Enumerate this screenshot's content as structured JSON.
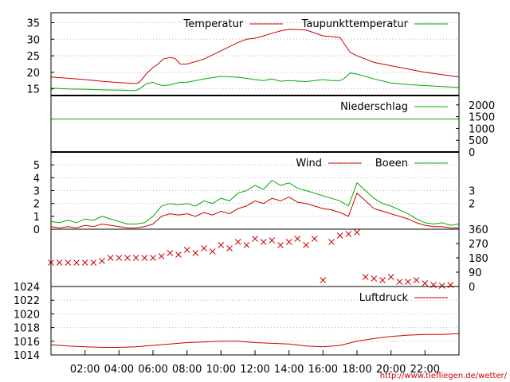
{
  "x_tick_labels": [
    "02:00",
    "04:00",
    "06:00",
    "08:00",
    "10:00",
    "12:00",
    "14:00",
    "16:00",
    "18:00",
    "20:00",
    "22:00"
  ],
  "credit": "http://www.tiefliegen.de/wetter/",
  "colors": {
    "red": "#cc0000",
    "green": "#00aa00",
    "grid": "#b0b0b0",
    "axis": "#000000"
  },
  "chart_data": [
    {
      "type": "line",
      "panel": "temperature",
      "x_unit": "hours",
      "x": [
        0,
        1,
        2,
        3,
        4,
        5,
        5.2,
        5.6,
        6,
        6.3,
        6.6,
        7,
        7.3,
        7.6,
        8,
        9,
        10,
        11,
        11.5,
        12,
        12.5,
        13,
        13.5,
        14,
        15,
        16,
        16.5,
        17,
        17.2,
        17.6,
        18,
        19,
        20,
        21,
        22,
        23,
        24
      ],
      "series": [
        {
          "name": "Temperatur",
          "color": "#cc0000",
          "values": [
            18.6,
            18.2,
            17.8,
            17.3,
            16.9,
            16.6,
            17,
            19.5,
            21.5,
            22.5,
            24,
            24.5,
            24.2,
            22.5,
            22.5,
            24,
            26.5,
            29,
            30,
            30.3,
            31,
            31.8,
            32.5,
            33,
            32.8,
            31,
            30.8,
            30.5,
            29,
            26,
            25,
            23,
            22,
            21,
            20,
            19.3,
            18.6
          ]
        },
        {
          "name": "Taupunkttemperatur",
          "color": "#00aa00",
          "values": [
            15.2,
            15,
            14.9,
            14.7,
            14.6,
            14.5,
            15,
            16.5,
            17,
            16.3,
            16,
            16.2,
            16.6,
            17,
            17,
            18,
            18.8,
            18.5,
            18.2,
            17.8,
            17.5,
            18,
            17.3,
            17.5,
            17.2,
            17.8,
            17.5,
            17.5,
            18,
            19.8,
            19.5,
            18,
            16.8,
            16.3,
            16,
            15.7,
            15.4
          ]
        }
      ],
      "xlabel": "",
      "ylabel": "",
      "xlim": [
        0,
        24
      ],
      "ylim": [
        13,
        38
      ],
      "yticks": [
        15,
        20,
        25,
        30,
        35
      ],
      "grid": true,
      "legend": "top-right"
    },
    {
      "type": "line",
      "panel": "precipitation",
      "x_unit": "hours",
      "x": [
        0,
        24
      ],
      "series": [
        {
          "name": "Niederschlag",
          "color": "#00aa00",
          "values": [
            1400,
            1400
          ]
        }
      ],
      "xlim": [
        0,
        24
      ],
      "ylim": [
        0,
        2400
      ],
      "yticks": [
        0,
        500,
        1000,
        1500,
        2000
      ],
      "y_axis_side": "right",
      "grid": false,
      "legend": "top-right"
    },
    {
      "type": "line",
      "panel": "wind",
      "x_unit": "hours",
      "x": [
        0,
        0.5,
        1,
        1.5,
        2,
        2.5,
        3,
        3.5,
        4,
        4.5,
        5,
        5.5,
        6,
        6.5,
        7,
        7.5,
        8,
        8.5,
        9,
        9.5,
        10,
        10.5,
        11,
        11.5,
        12,
        12.5,
        13,
        13.5,
        14,
        14.5,
        15,
        15.5,
        16,
        16.5,
        17,
        17.5,
        18,
        18.5,
        19,
        19.5,
        20,
        20.5,
        21,
        21.5,
        22,
        22.5,
        23,
        23.5,
        24
      ],
      "series": [
        {
          "name": "Wind",
          "color": "#cc0000",
          "values": [
            0.2,
            0.1,
            0.2,
            0.1,
            0.3,
            0.2,
            0.4,
            0.3,
            0.2,
            0.1,
            0.1,
            0.2,
            0.4,
            1,
            1.2,
            1.1,
            1.2,
            1.0,
            1.3,
            1.1,
            1.4,
            1.2,
            1.6,
            1.8,
            2.2,
            2.0,
            2.4,
            2.2,
            2.5,
            2.1,
            2.0,
            1.8,
            1.6,
            1.5,
            1.3,
            1.0,
            2.8,
            2.2,
            1.6,
            1.4,
            1.2,
            1.0,
            0.8,
            0.5,
            0.3,
            0.2,
            0.2,
            0.1,
            0.1
          ]
        },
        {
          "name": "Boeen",
          "color": "#00aa00",
          "values": [
            0.6,
            0.5,
            0.7,
            0.5,
            0.8,
            0.7,
            1.0,
            0.8,
            0.6,
            0.4,
            0.4,
            0.5,
            1.0,
            1.8,
            2.0,
            1.9,
            2.0,
            1.8,
            2.2,
            2.0,
            2.4,
            2.2,
            2.8,
            3.0,
            3.4,
            3.1,
            3.8,
            3.4,
            3.6,
            3.2,
            3.0,
            2.8,
            2.6,
            2.4,
            2.2,
            1.8,
            3.6,
            3.0,
            2.4,
            2.0,
            1.8,
            1.5,
            1.2,
            0.8,
            0.5,
            0.4,
            0.5,
            0.3,
            0.4
          ]
        }
      ],
      "xlim": [
        0,
        24
      ],
      "ylim": [
        0,
        6
      ],
      "yticks": [
        0,
        1,
        2,
        3,
        4,
        5
      ],
      "right_yticks": [
        2,
        3
      ],
      "grid": true,
      "legend": "top-right"
    },
    {
      "type": "scatter",
      "panel": "wind-direction",
      "x_unit": "hours",
      "x": [
        0,
        0.5,
        1,
        1.5,
        2,
        2.5,
        3,
        3.5,
        4,
        4.5,
        5,
        5.5,
        6,
        6.5,
        7,
        7.5,
        8,
        8.5,
        9,
        9.5,
        10,
        10.5,
        11,
        11.5,
        12,
        12.5,
        13,
        13.5,
        14,
        14.5,
        15,
        15.5,
        16,
        16.5,
        17,
        17.5,
        18,
        18.5,
        19,
        19.5,
        20,
        20.5,
        21,
        21.5,
        22,
        22.5,
        23,
        23.5
      ],
      "series": [
        {
          "name": "",
          "color": "#cc0000",
          "values": [
            150,
            150,
            150,
            150,
            150,
            150,
            160,
            180,
            180,
            180,
            180,
            180,
            180,
            190,
            210,
            200,
            230,
            210,
            240,
            220,
            260,
            240,
            280,
            260,
            300,
            280,
            290,
            260,
            280,
            300,
            260,
            300,
            40,
            280,
            320,
            330,
            340,
            60,
            50,
            40,
            60,
            30,
            30,
            40,
            20,
            10,
            5,
            10
          ]
        }
      ],
      "xlim": [
        0,
        24
      ],
      "ylim": [
        0,
        360
      ],
      "yticks": [
        0,
        90,
        180,
        270,
        360
      ],
      "y_axis_side": "right",
      "grid": false
    },
    {
      "type": "line",
      "panel": "pressure",
      "x_unit": "hours",
      "x": [
        0,
        1,
        2,
        3,
        4,
        5,
        6,
        7,
        8,
        9,
        10,
        11,
        12,
        13,
        14,
        15,
        16,
        17,
        18,
        19,
        20,
        21,
        22,
        23,
        24
      ],
      "series": [
        {
          "name": "Luftdruck",
          "color": "#cc0000",
          "values": [
            1015.5,
            1015.3,
            1015.2,
            1015.1,
            1015.1,
            1015.2,
            1015.4,
            1015.6,
            1015.8,
            1015.9,
            1016.0,
            1016.0,
            1015.8,
            1015.7,
            1015.6,
            1015.3,
            1015.2,
            1015.4,
            1016.0,
            1016.4,
            1016.7,
            1016.9,
            1017.0,
            1017.0,
            1017.1
          ]
        }
      ],
      "xlim": [
        0,
        24
      ],
      "ylim": [
        1014,
        1024
      ],
      "yticks": [
        1014,
        1016,
        1018,
        1020,
        1022,
        1024
      ],
      "grid": true,
      "legend": "top-right"
    }
  ]
}
